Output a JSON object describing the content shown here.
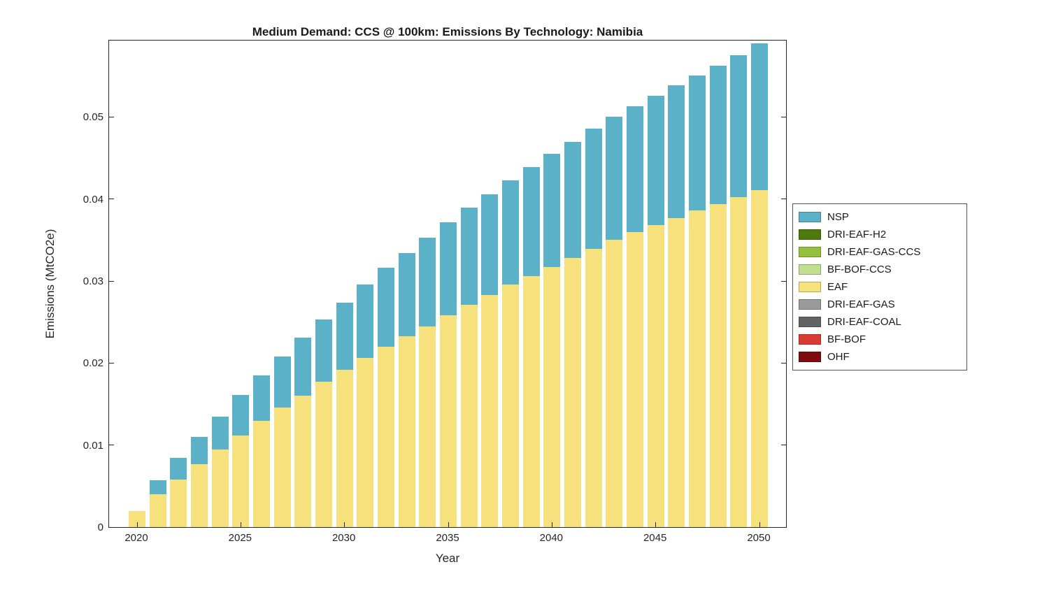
{
  "chart_data": {
    "type": "bar",
    "stacked": true,
    "title": "Medium Demand: CCS @ 100km: Emissions By Technology: Namibia",
    "xlabel": "Year",
    "ylabel": "Emissions (MtCO2e)",
    "ylim": [
      0,
      0.0595
    ],
    "grid": false,
    "legend_position": "right-outside",
    "x": [
      2020,
      2021,
      2022,
      2023,
      2024,
      2025,
      2026,
      2027,
      2028,
      2029,
      2030,
      2031,
      2032,
      2033,
      2034,
      2035,
      2036,
      2037,
      2038,
      2039,
      2040,
      2041,
      2042,
      2043,
      2044,
      2045,
      2046,
      2047,
      2048,
      2049,
      2050
    ],
    "series": [
      {
        "name": "EAF",
        "color": "#F6E17C",
        "values": [
          0.002,
          0.004,
          0.0058,
          0.0077,
          0.0095,
          0.0112,
          0.013,
          0.0146,
          0.016,
          0.0177,
          0.0192,
          0.0206,
          0.022,
          0.0233,
          0.0245,
          0.0258,
          0.0271,
          0.0283,
          0.0296,
          0.0306,
          0.0317,
          0.0328,
          0.0339,
          0.035,
          0.036,
          0.0368,
          0.0377,
          0.0386,
          0.0394,
          0.0402,
          0.0411
        ]
      },
      {
        "name": "NSP",
        "color": "#5BB1C7",
        "values": [
          0.0,
          0.0017,
          0.0026,
          0.0033,
          0.004,
          0.0049,
          0.0055,
          0.0062,
          0.0071,
          0.0076,
          0.0082,
          0.009,
          0.0096,
          0.0101,
          0.0108,
          0.0114,
          0.0119,
          0.0123,
          0.0127,
          0.0133,
          0.0138,
          0.0142,
          0.0147,
          0.015,
          0.0153,
          0.0158,
          0.0162,
          0.0165,
          0.0169,
          0.0173,
          0.0179
        ]
      }
    ],
    "legend": [
      {
        "label": "NSP",
        "color": "#5BB1C7"
      },
      {
        "label": "DRI-EAF-H2",
        "color": "#4C7A0D"
      },
      {
        "label": "DRI-EAF-GAS-CCS",
        "color": "#94C13D"
      },
      {
        "label": "BF-BOF-CCS",
        "color": "#C2DE91"
      },
      {
        "label": "EAF",
        "color": "#F6E17C"
      },
      {
        "label": "DRI-EAF-GAS",
        "color": "#9A9A9A"
      },
      {
        "label": "DRI-EAF-COAL",
        "color": "#636363"
      },
      {
        "label": "BF-BOF",
        "color": "#DA3B33"
      },
      {
        "label": "OHF",
        "color": "#7E0C0F"
      }
    ],
    "yticks": {
      "values": [
        0,
        0.01,
        0.02,
        0.03,
        0.04,
        0.05
      ],
      "labels": [
        "0",
        "0.01",
        "0.02",
        "0.03",
        "0.04",
        "0.05"
      ]
    },
    "xticks": {
      "values": [
        2020,
        2025,
        2030,
        2035,
        2040,
        2045,
        2050
      ],
      "labels": [
        "2020",
        "2025",
        "2030",
        "2035",
        "2040",
        "2045",
        "2050"
      ]
    }
  }
}
